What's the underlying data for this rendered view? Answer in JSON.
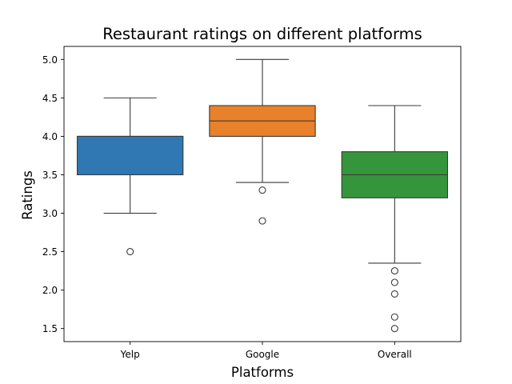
{
  "chart_data": {
    "type": "box",
    "title": "Restaurant ratings on different platforms",
    "xlabel": "Platforms",
    "ylabel": "Ratings",
    "ylim": [
      1.33,
      5.17
    ],
    "yticks": [
      "1.5",
      "2.0",
      "2.5",
      "3.0",
      "3.5",
      "4.0",
      "4.5",
      "5.0"
    ],
    "grid": false,
    "legend": "none",
    "categories": [
      "Yelp",
      "Google",
      "Overall"
    ],
    "series": [
      {
        "category": "Yelp",
        "color": "#2f78b3",
        "whisker_low": 3.0,
        "q1": 3.5,
        "median": 4.0,
        "q3": 4.0,
        "whisker_high": 4.5,
        "outliers": [
          2.5
        ]
      },
      {
        "category": "Google",
        "color": "#e8812a",
        "whisker_low": 3.4,
        "q1": 4.0,
        "median": 4.2,
        "q3": 4.4,
        "whisker_high": 5.0,
        "outliers": [
          3.3,
          2.9
        ]
      },
      {
        "category": "Overall",
        "color": "#35953a",
        "whisker_low": 2.35,
        "q1": 3.2,
        "median": 3.5,
        "q3": 3.8,
        "whisker_high": 4.4,
        "outliers": [
          2.25,
          2.1,
          1.95,
          1.65,
          1.5
        ]
      }
    ]
  }
}
